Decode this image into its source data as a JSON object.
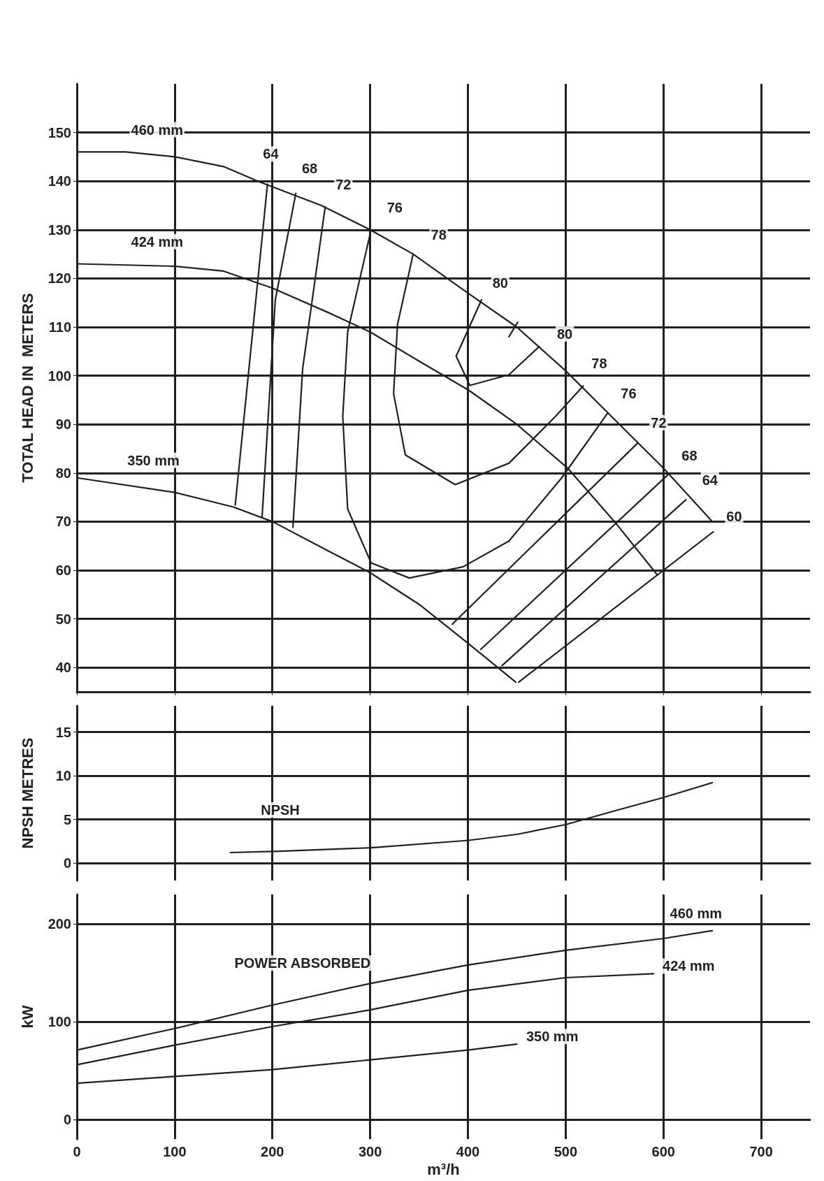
{
  "chart_data": [
    {
      "type": "line",
      "ylabel": "TOTAL HEAD IN  METERS",
      "xlim": [
        0,
        750
      ],
      "ylim": [
        35,
        160
      ],
      "yticks": [
        40,
        50,
        60,
        70,
        80,
        90,
        100,
        110,
        120,
        130,
        140,
        150
      ],
      "xticks": [
        0,
        100,
        200,
        300,
        400,
        500,
        600,
        700
      ],
      "tick_labels": "y",
      "grid": true,
      "marker": "none",
      "line_style": "solid",
      "series": [
        {
          "color": "#231f20",
          "x": [
            0,
            50,
            100,
            150,
            185,
            250,
            300,
            344,
            400,
            450,
            500,
            550,
            600,
            650
          ],
          "values": [
            146,
            146,
            145,
            143,
            140,
            135,
            130,
            125,
            117,
            110,
            101,
            91,
            81,
            70
          ]
        },
        {
          "color": "#231f20",
          "x": [
            0,
            100,
            150,
            200,
            257,
            300,
            350,
            401,
            450,
            502,
            550,
            594
          ],
          "values": [
            123,
            122.5,
            121.5,
            118,
            113,
            109,
            103,
            97,
            90,
            81,
            70,
            59
          ]
        },
        {
          "color": "#231f20",
          "x": [
            0,
            100,
            160,
            200,
            257,
            300,
            350,
            400,
            449
          ],
          "values": [
            79,
            76,
            73,
            70,
            64,
            59.5,
            53,
            45,
            37
          ]
        },
        {
          "color": "#231f20",
          "x": [
            195,
            162
          ],
          "values": [
            139.4,
            73.4
          ]
        },
        {
          "color": "#231f20",
          "x": [
            224,
            203,
            189.5
          ],
          "values": [
            137.5,
            115.6,
            71
          ]
        },
        {
          "color": "#231f20",
          "x": [
            254,
            231,
            221
          ],
          "values": [
            134.7,
            101.5,
            68.8
          ]
        },
        {
          "color": "#231f20",
          "x": [
            301,
            277,
            272,
            277,
            301,
            340,
            395,
            442,
            496,
            543
          ],
          "values": [
            130,
            109,
            91.6,
            72.6,
            61.5,
            58.4,
            60.7,
            66,
            79,
            92.3
          ]
        },
        {
          "color": "#231f20",
          "x": [
            344,
            328,
            324,
            336,
            387,
            442,
            489,
            518
          ],
          "values": [
            125,
            110.5,
            96.3,
            83.7,
            77.6,
            82,
            91.5,
            97.9
          ]
        },
        {
          "color": "#231f20",
          "x": [
            414,
            388,
            402,
            442,
            473
          ],
          "values": [
            115.6,
            104,
            98,
            100.2,
            106
          ]
        },
        {
          "color": "#231f20",
          "x": [
            442,
            451
          ],
          "values": [
            108,
            111
          ]
        },
        {
          "color": "#231f20",
          "x": [
            574,
            384
          ],
          "values": [
            86.2,
            48.9
          ]
        },
        {
          "color": "#231f20",
          "x": [
            605,
            413
          ],
          "values": [
            79.7,
            43.7
          ]
        },
        {
          "color": "#231f20",
          "x": [
            623,
            435
          ],
          "values": [
            74.5,
            40.4
          ]
        },
        {
          "color": "#231f20",
          "x": [
            651,
            452
          ],
          "values": [
            67.9,
            37
          ]
        }
      ],
      "annotations": [
        "460 mm",
        "424 mm",
        "350 mm",
        "64",
        "68",
        "72",
        "76",
        "78",
        "80",
        "80",
        "78",
        "76",
        "72",
        "68",
        "64",
        "60"
      ]
    },
    {
      "type": "line",
      "ylabel": "NPSH METRES",
      "xlim": [
        0,
        750
      ],
      "ylim": [
        -2,
        18
      ],
      "yticks": [
        0,
        5,
        10,
        15
      ],
      "xticks": [
        0,
        100,
        200,
        300,
        400,
        500,
        600,
        700
      ],
      "tick_labels": "y",
      "grid": true,
      "marker": "none",
      "line_style": "solid",
      "series": [
        {
          "color": "#231f20",
          "x": [
            157,
            207,
            301,
            401,
            451,
            500,
            551,
            600,
            650
          ],
          "values": [
            1.2,
            1.35,
            1.75,
            2.6,
            3.3,
            4.4,
            6,
            7.5,
            9.2
          ]
        }
      ],
      "annotations": [
        "NPSH"
      ]
    },
    {
      "type": "line",
      "xlabel": "m³/h",
      "ylabel": "kW",
      "xlim": [
        0,
        750
      ],
      "ylim": [
        -20,
        230
      ],
      "yticks": [
        0,
        100,
        200
      ],
      "xticks": [
        0,
        100,
        200,
        300,
        400,
        500,
        600,
        700
      ],
      "grid": true,
      "marker": "none",
      "line_style": "solid",
      "series": [
        {
          "color": "#231f20",
          "x": [
            0,
            100,
            200,
            300,
            400,
            500,
            600,
            650
          ],
          "values": [
            71,
            93,
            117,
            139,
            158,
            173,
            185,
            193
          ]
        },
        {
          "color": "#231f20",
          "x": [
            0,
            100,
            200,
            300,
            400,
            500,
            590
          ],
          "values": [
            56,
            76,
            95,
            112,
            132,
            145,
            149
          ]
        },
        {
          "color": "#231f20",
          "x": [
            0,
            100,
            200,
            300,
            400,
            450
          ],
          "values": [
            37,
            44,
            51,
            61,
            71,
            77
          ]
        }
      ],
      "annotations": [
        "POWER ABSORBED",
        "460 mm",
        "424 mm",
        "350 mm"
      ]
    }
  ]
}
